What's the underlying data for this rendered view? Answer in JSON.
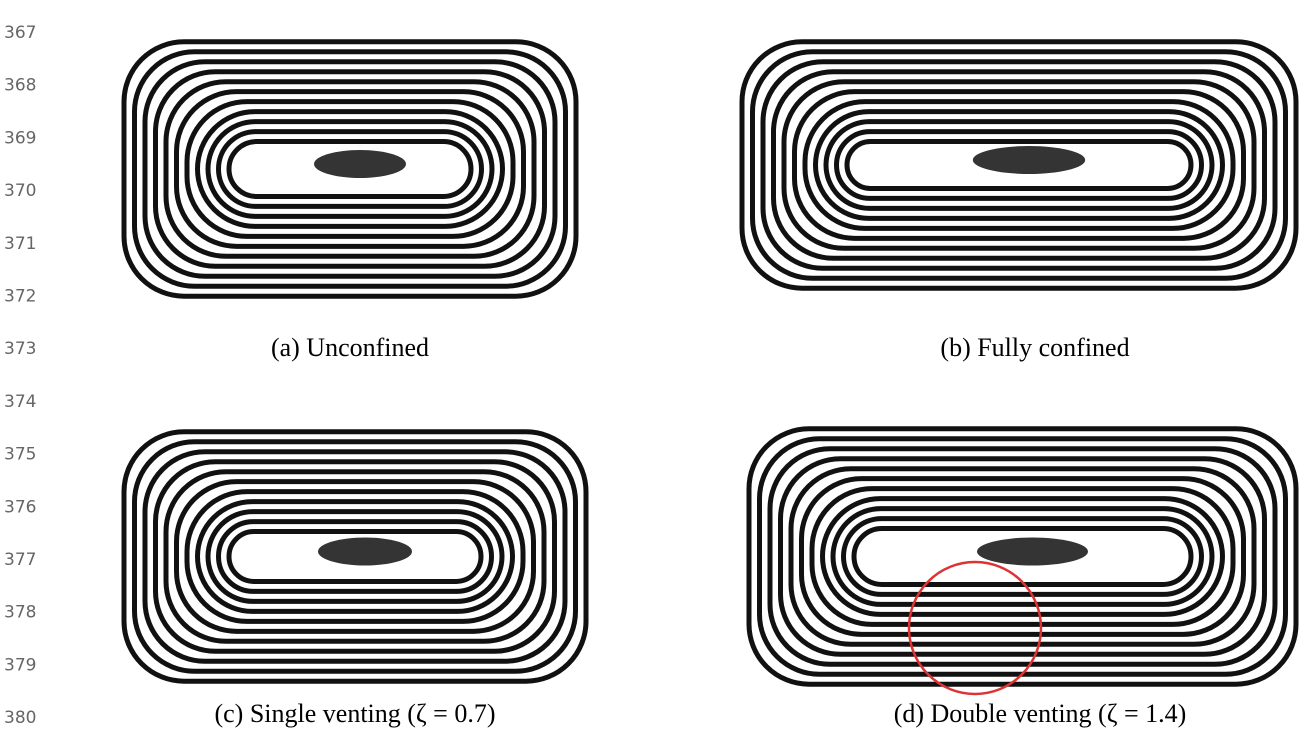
{
  "line_numbers": [
    "367",
    "368",
    "369",
    "370",
    "371",
    "372",
    "373",
    "374",
    "375",
    "376",
    "377",
    "378",
    "379",
    "380"
  ],
  "panels": [
    {
      "caption": "(a) Unconfined"
    },
    {
      "caption": "(b) Fully confined"
    },
    {
      "caption": "(c) Single venting (ζ = 0.7)"
    },
    {
      "caption": "(d) Double venting (ζ = 1.4)"
    }
  ]
}
